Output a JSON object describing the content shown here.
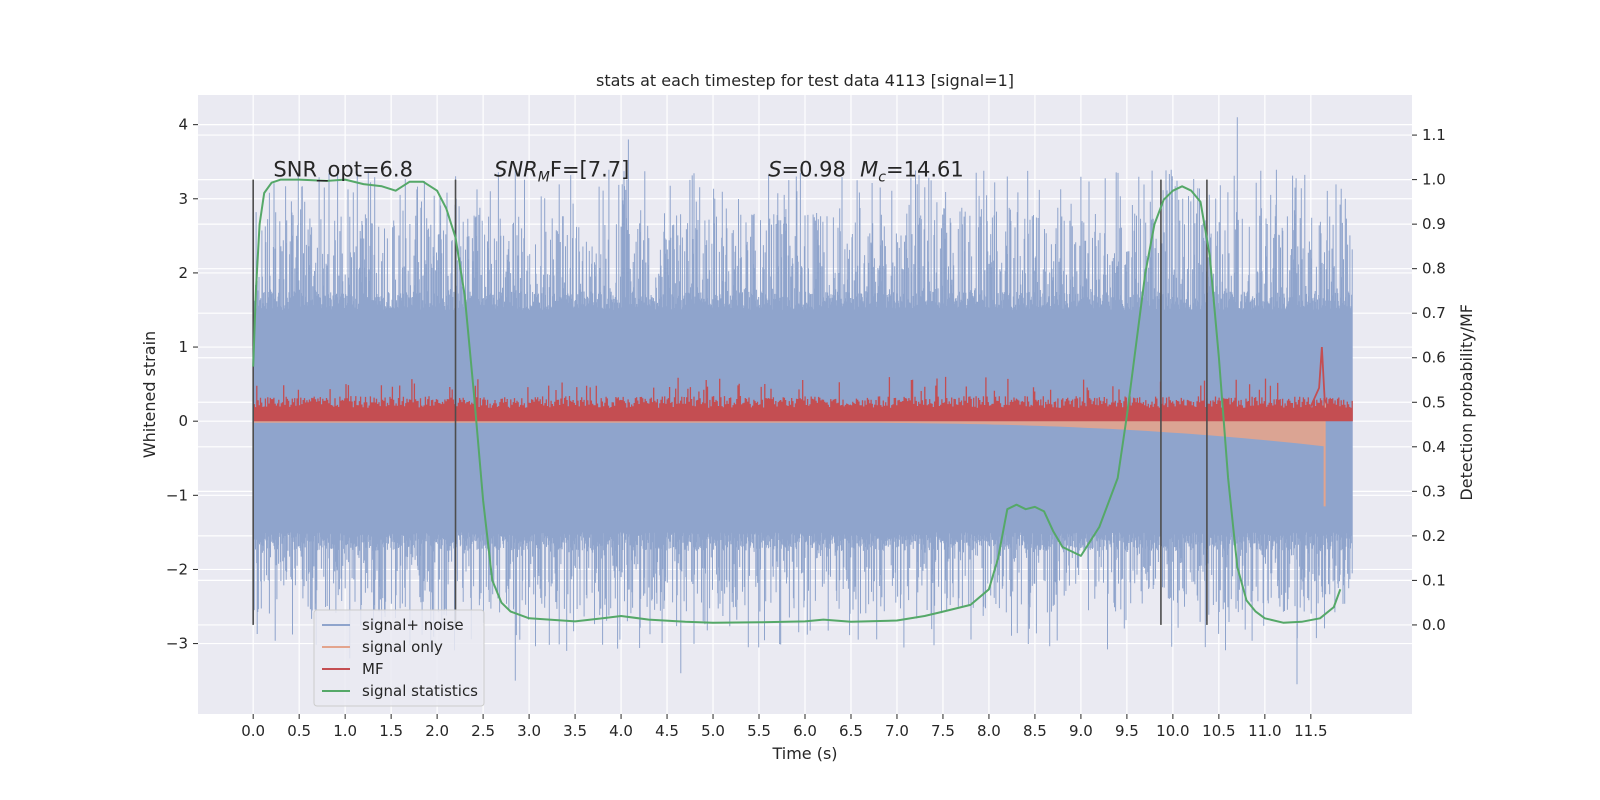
{
  "chart_data": {
    "type": "line",
    "title": "stats at each timestep for test data 4113 [signal=1]",
    "xlabel": "Time (s)",
    "ylabel_left": "Whitened strain",
    "ylabel_right": "Detection probability/MF",
    "xlim": [
      -0.6,
      12.6
    ],
    "ylim_left": [
      -3.95,
      4.4
    ],
    "ylim_right": [
      -0.2,
      1.19
    ],
    "x_ticks": [
      0.0,
      0.5,
      1.0,
      1.5,
      2.0,
      2.5,
      3.0,
      3.5,
      4.0,
      4.5,
      5.0,
      5.5,
      6.0,
      6.5,
      7.0,
      7.5,
      8.0,
      8.5,
      9.0,
      9.5,
      10.0,
      10.5,
      11.0,
      11.5
    ],
    "x_tick_labels": [
      "0.0",
      "0.5",
      "1.0",
      "1.5",
      "2.0",
      "2.5",
      "3.0",
      "3.5",
      "4.0",
      "4.5",
      "5.0",
      "5.5",
      "6.0",
      "6.5",
      "7.0",
      "7.5",
      "8.0",
      "8.5",
      "9.0",
      "9.5",
      "10.0",
      "10.5",
      "11.0",
      "11.5"
    ],
    "y_left_ticks": [
      -3,
      -2,
      -1,
      0,
      1,
      2,
      3,
      4
    ],
    "y_left_tick_labels": [
      "−3",
      "−2",
      "−1",
      "0",
      "1",
      "2",
      "3",
      "4"
    ],
    "y_right_ticks": [
      0.0,
      0.1,
      0.2,
      0.3,
      0.4,
      0.5,
      0.6,
      0.7,
      0.8,
      0.9,
      1.0,
      1.1
    ],
    "y_right_tick_labels": [
      "0.0",
      "0.1",
      "0.2",
      "0.3",
      "0.4",
      "0.5",
      "0.6",
      "0.7",
      "0.8",
      "0.9",
      "1.0",
      "1.1"
    ],
    "grid": true,
    "background": "#eaeaf2",
    "legend_position": "lower-left",
    "series": [
      {
        "name": "signal+ noise",
        "color": "#8fa4cc",
        "axis": "left",
        "noise_band": [
          -1.5,
          1.5
        ],
        "peak_range": [
          -3.5,
          4.1
        ],
        "x_range": [
          0.0,
          11.95
        ]
      },
      {
        "name": "signal only",
        "color": "#e3a48d",
        "axis": "left",
        "chirp_end": 11.65,
        "chirp_min": -1.15
      },
      {
        "name": "MF",
        "color": "#c44e52",
        "axis": "left",
        "level_range": [
          0.0,
          0.4
        ],
        "peak": {
          "x": 11.62,
          "y": 1.0
        }
      },
      {
        "name": "signal statistics",
        "color": "#55a868",
        "axis": "right",
        "x": [
          0.0,
          0.03,
          0.07,
          0.12,
          0.2,
          0.3,
          0.5,
          0.8,
          1.0,
          1.2,
          1.4,
          1.55,
          1.7,
          1.85,
          2.0,
          2.1,
          2.2,
          2.3,
          2.4,
          2.5,
          2.6,
          2.7,
          2.8,
          3.0,
          3.5,
          3.8,
          4.0,
          4.3,
          4.7,
          5.0,
          5.5,
          6.0,
          6.2,
          6.5,
          7.0,
          7.3,
          7.5,
          7.8,
          8.0,
          8.1,
          8.2,
          8.3,
          8.4,
          8.5,
          8.6,
          8.7,
          8.8,
          9.0,
          9.2,
          9.4,
          9.5,
          9.6,
          9.7,
          9.8,
          9.9,
          10.0,
          10.1,
          10.2,
          10.3,
          10.4,
          10.5,
          10.6,
          10.7,
          10.8,
          10.9,
          11.0,
          11.2,
          11.4,
          11.6,
          11.75,
          11.82
        ],
        "y": [
          0.58,
          0.75,
          0.9,
          0.97,
          0.993,
          1.0,
          1.0,
          0.997,
          1.0,
          0.99,
          0.985,
          0.975,
          0.995,
          0.995,
          0.975,
          0.935,
          0.87,
          0.74,
          0.52,
          0.28,
          0.1,
          0.05,
          0.03,
          0.015,
          0.008,
          0.015,
          0.02,
          0.012,
          0.007,
          0.005,
          0.006,
          0.008,
          0.012,
          0.007,
          0.01,
          0.02,
          0.03,
          0.045,
          0.08,
          0.15,
          0.26,
          0.27,
          0.26,
          0.265,
          0.255,
          0.21,
          0.175,
          0.155,
          0.22,
          0.33,
          0.47,
          0.63,
          0.79,
          0.9,
          0.955,
          0.975,
          0.985,
          0.975,
          0.95,
          0.83,
          0.6,
          0.33,
          0.13,
          0.055,
          0.03,
          0.015,
          0.005,
          0.007,
          0.015,
          0.04,
          0.08
        ]
      }
    ],
    "vertical_lines": [
      0.0,
      2.2,
      9.87,
      10.37
    ],
    "annotations": [
      {
        "text": "SNR_opt=6.8",
        "x": 0.22,
        "y": 3.3
      },
      {
        "text": "SNR",
        "x": 2.62,
        "y": 3.3
      },
      {
        "text": "M",
        "x": 2.62,
        "y": 3.3
      },
      {
        "text": "F=[7.7]",
        "x": 2.62,
        "y": 3.3
      },
      {
        "text": "S",
        "x": 5.6,
        "y": 3.3
      },
      {
        "text": "=0.98",
        "x": 5.6,
        "y": 3.3
      },
      {
        "text": "M",
        "x": 6.6,
        "y": 3.3
      },
      {
        "text": "c",
        "x": 6.6,
        "y": 3.3
      },
      {
        "text": "=14.61",
        "x": 6.6,
        "y": 3.3
      }
    ]
  }
}
